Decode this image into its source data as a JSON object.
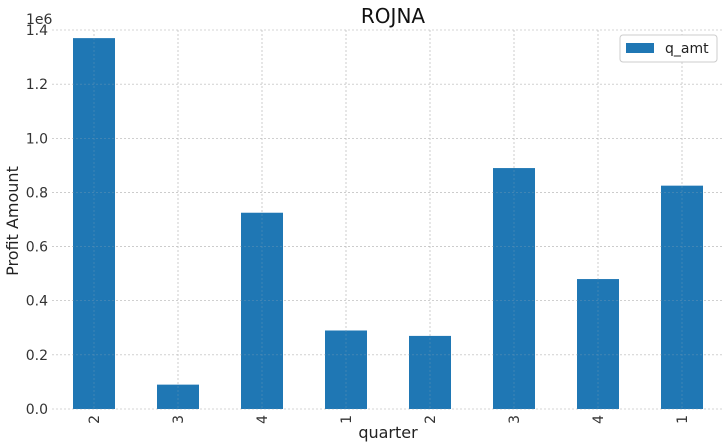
{
  "chart_data": {
    "type": "bar",
    "title": "ROJNA",
    "xlabel": "quarter",
    "ylabel": "Profit Amount",
    "y_scale_label": "1e6",
    "categories": [
      "2",
      "3",
      "4",
      "1",
      "2",
      "3",
      "4",
      "1"
    ],
    "series": [
      {
        "name": "q_amt",
        "values": [
          1370000,
          90000,
          725000,
          290000,
          270000,
          890000,
          480000,
          825000
        ],
        "color": "#1f77b4"
      }
    ],
    "ylim": [
      0,
      1400000
    ],
    "yticks": [
      0,
      200000,
      400000,
      600000,
      800000,
      1000000,
      1200000,
      1400000
    ],
    "ytick_labels": [
      "0.0",
      "0.2",
      "0.4",
      "0.6",
      "0.8",
      "1.0",
      "1.2",
      "1.4"
    ],
    "grid": true,
    "legend_position": "top-right"
  }
}
